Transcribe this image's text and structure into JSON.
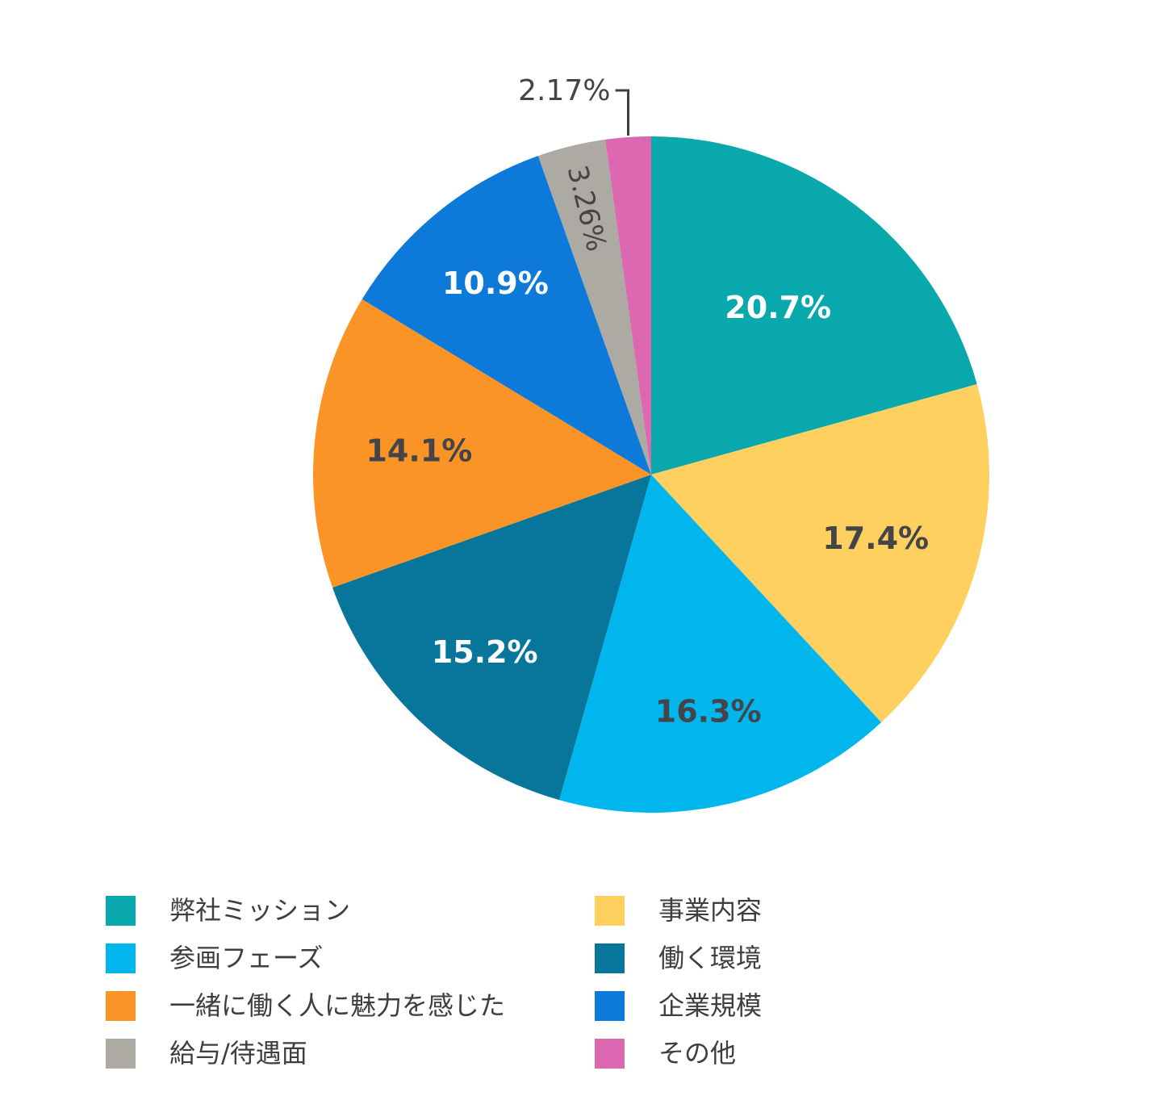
{
  "chart_data": {
    "type": "pie",
    "title": "",
    "slices": [
      {
        "label": "弊社ミッション",
        "value": 20.7,
        "pct_label": "20.7%",
        "color": "#08A8AC",
        "text_color": "#FFFFFF"
      },
      {
        "label": "事業内容",
        "value": 17.4,
        "pct_label": "17.4%",
        "color": "#FDD05F",
        "text_color": "#454549"
      },
      {
        "label": "参画フェーズ",
        "value": 16.3,
        "pct_label": "16.3%",
        "color": "#00B6ED",
        "text_color": "#454549"
      },
      {
        "label": "働く環境",
        "value": 15.2,
        "pct_label": "15.2%",
        "color": "#08769B",
        "text_color": "#FFFFFF"
      },
      {
        "label": "一緒に働く人に魅力を感じた",
        "value": 14.1,
        "pct_label": "14.1%",
        "color": "#FA9427",
        "text_color": "#454549"
      },
      {
        "label": "企業規模",
        "value": 10.9,
        "pct_label": "10.9%",
        "color": "#0D7AD9",
        "text_color": "#FFFFFF"
      },
      {
        "label": "給与/待遇面",
        "value": 3.26,
        "pct_label": "3.26%",
        "color": "#ADA9A3",
        "text_color": "#454549"
      },
      {
        "label": "その他",
        "value": 2.17,
        "pct_label": "2.17%",
        "color": "#DC68B1",
        "text_color": "#454549"
      }
    ],
    "layout": {
      "start_angle_deg": 0,
      "direction": "clockwise",
      "label_radius_frac": [
        0.62,
        0.69,
        0.72,
        0.72,
        0.69,
        0.73,
        0.81,
        0
      ],
      "label_placement": [
        "inside",
        "inside",
        "inside",
        "inside",
        "inside",
        "inside",
        "inside-rotated",
        "outside-callout"
      ],
      "legend_position": "bottom-two-columns",
      "legend_columns": [
        [
          0,
          2,
          4,
          6
        ],
        [
          1,
          3,
          5,
          7
        ]
      ],
      "callout_color": "#3F3F44",
      "background": "#FFFFFF"
    }
  }
}
